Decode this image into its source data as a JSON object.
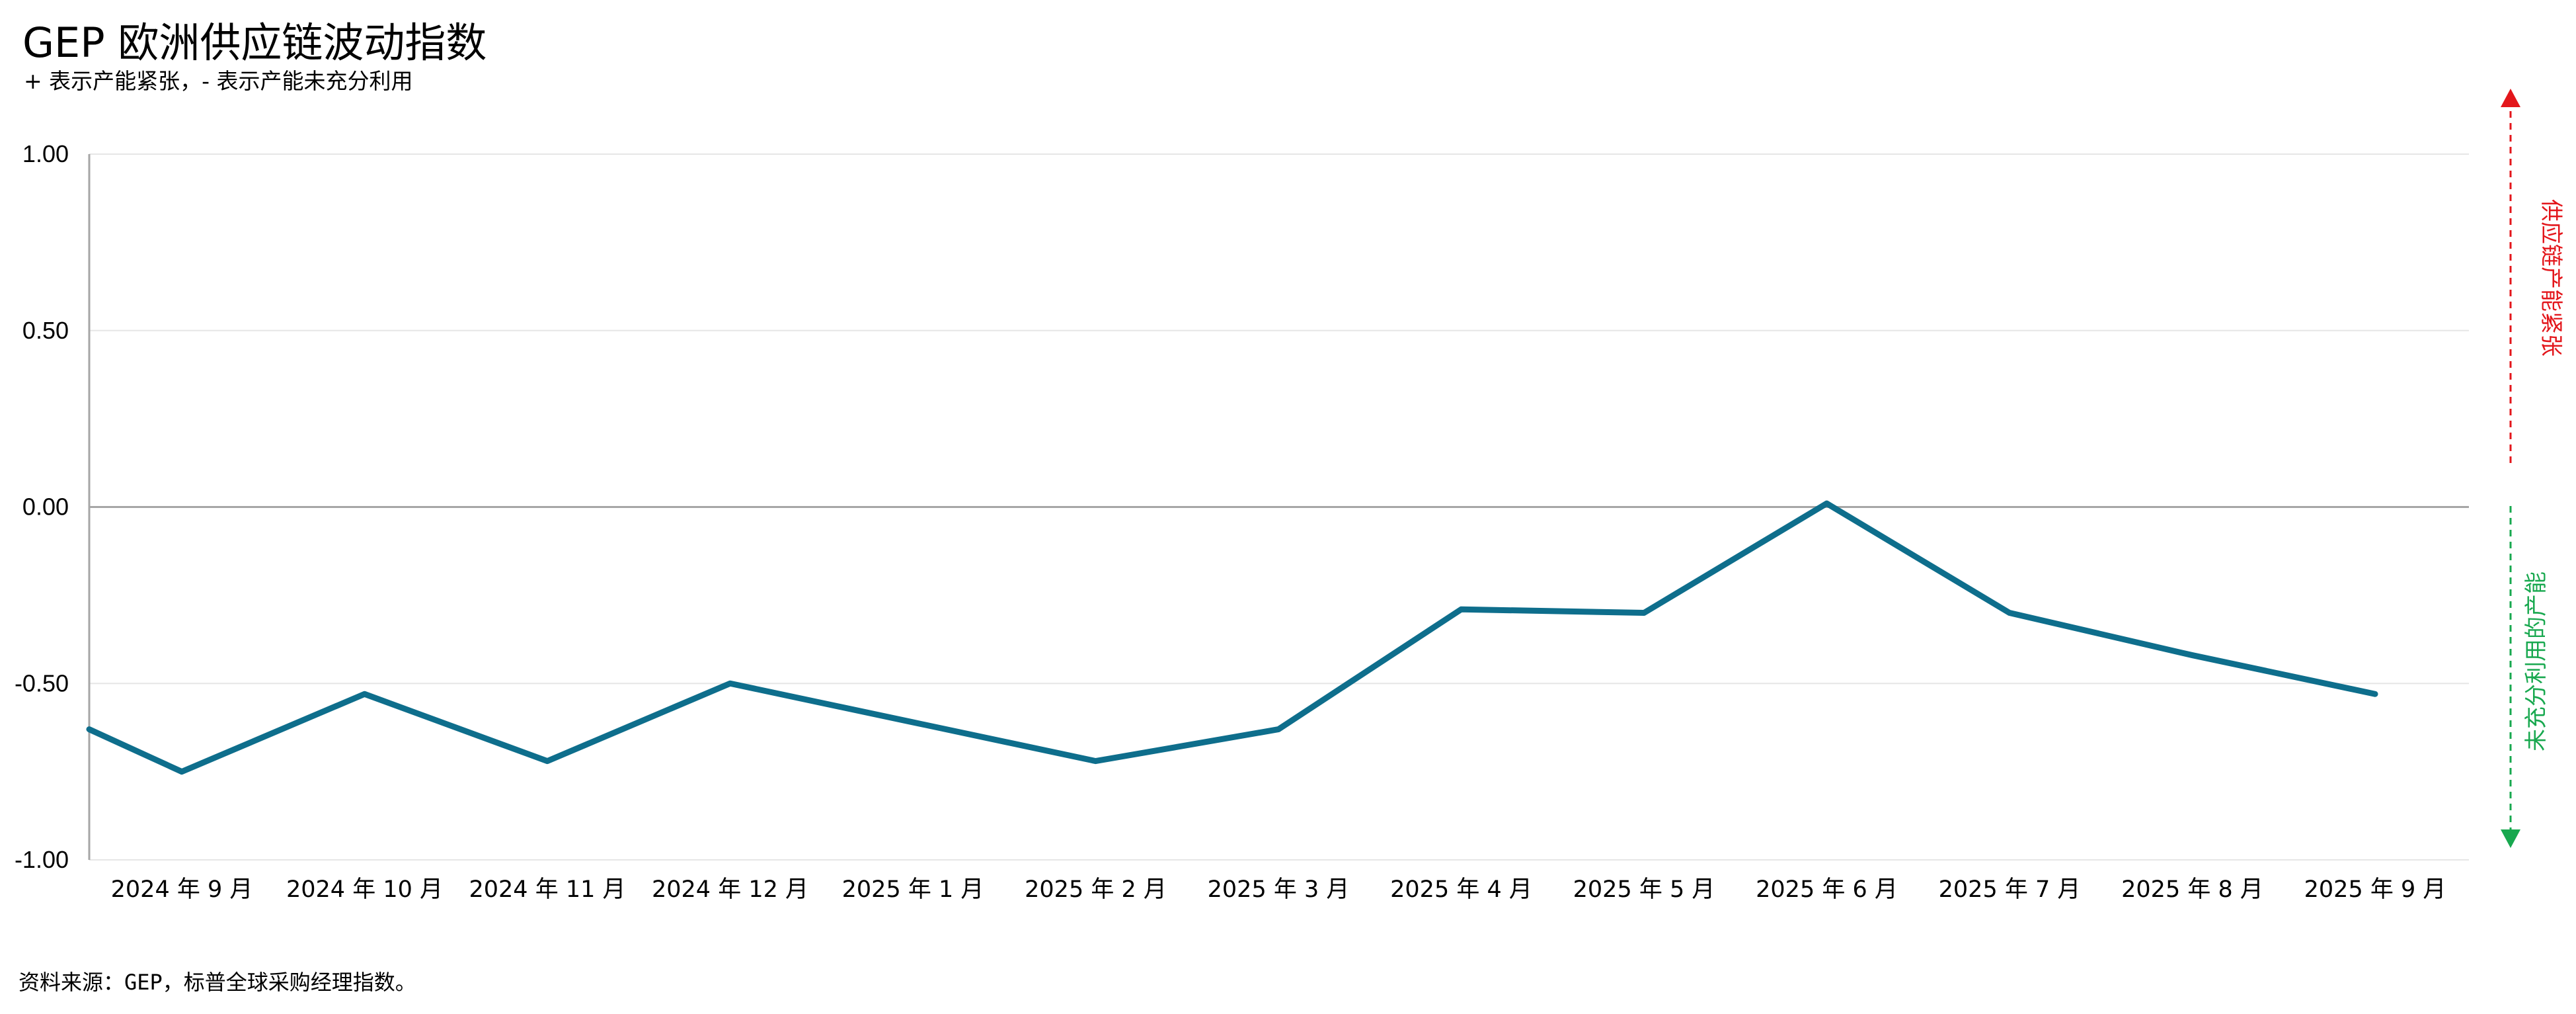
{
  "chart_data": {
    "type": "line",
    "title": "GEP 欧洲供应链波动指数",
    "subtitle": "+ 表示产能紧张，- 表示产能未充分利用",
    "source": "资料来源：GEP，标普全球采购经理指数。",
    "categories": [
      "2024 年 9 月",
      "2024 年 10 月",
      "2024 年 11 月",
      "2024 年 12 月",
      "2025 年 1 月",
      "2025 年 2 月",
      "2025 年 3 月",
      "2025 年 4 月",
      "2025 年 5 月",
      "2025 年 6 月",
      "2025 年 7 月",
      "2025 年 8 月",
      "2025 年 9 月"
    ],
    "start_value": -0.63,
    "series": [
      {
        "values": [
          -0.75,
          -0.53,
          -0.72,
          -0.5,
          -0.61,
          -0.72,
          -0.63,
          -0.29,
          -0.3,
          0.01,
          -0.3,
          -0.42,
          -0.53
        ]
      }
    ],
    "ylim": [
      -1.0,
      1.0
    ],
    "yticks": [
      "1.00",
      "0.50",
      "0.00",
      "-0.50",
      "-1.00"
    ],
    "grid": true,
    "line_color": "#0e6e8c",
    "annotations": {
      "up_label": "供应链产能紧张",
      "up_color": "#e3161b",
      "down_label": "未充分利用的产能",
      "down_color": "#18a84f"
    }
  }
}
